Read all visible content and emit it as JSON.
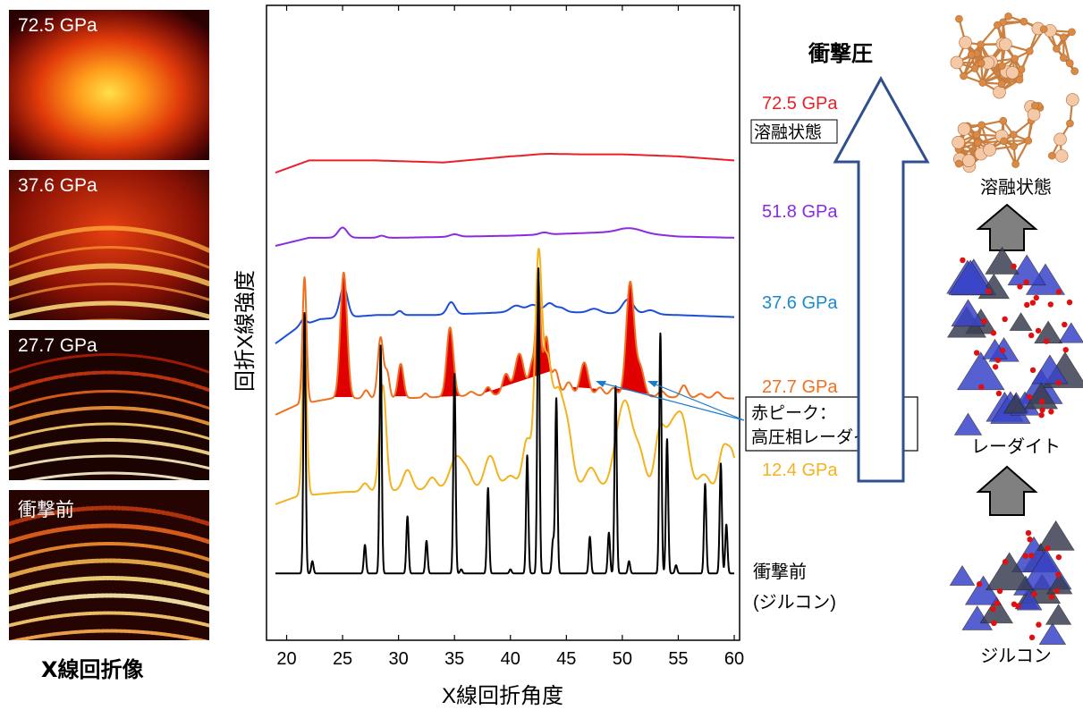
{
  "xray_images": {
    "panels": [
      {
        "label": "72.5 GPa",
        "style": "melt"
      },
      {
        "label": "37.6 GPa",
        "style": "rings-mid"
      },
      {
        "label": "27.7 GPa",
        "style": "rings-spotty"
      },
      {
        "label": "衝撃前",
        "style": "rings-grainy"
      }
    ],
    "caption": "X線回折像"
  },
  "chart_data": {
    "type": "line",
    "xlabel": "X線回折角度",
    "ylabel": "回折X線強度",
    "xlim": [
      19,
      60
    ],
    "xticks": [
      20,
      25,
      30,
      35,
      40,
      45,
      50,
      55,
      60
    ],
    "grid": false,
    "series": [
      {
        "name": "72.5 GPa",
        "color": "#e8202a",
        "offset": 10.1,
        "peaks": [
          [
            43,
            0.03,
            1.2
          ]
        ],
        "points": [
          [
            19,
            -0.25
          ],
          [
            22,
            0.05
          ],
          [
            28,
            0.05
          ],
          [
            34,
            0.0
          ],
          [
            40,
            0.15
          ],
          [
            45,
            0.2
          ],
          [
            50,
            0.2
          ],
          [
            55,
            0.15
          ],
          [
            60,
            0.05
          ]
        ]
      },
      {
        "name": "51.8 GPa",
        "color": "#8a2be2",
        "offset": 8.25,
        "peaks": [
          [
            25,
            0.25,
            0.4
          ],
          [
            28.5,
            0.05,
            0.3
          ],
          [
            35,
            0.06,
            0.4
          ],
          [
            43,
            0.05,
            0.4
          ],
          [
            50.8,
            0.1,
            1.0
          ]
        ],
        "points": [
          [
            19,
            -0.2
          ],
          [
            22,
            0.0
          ],
          [
            30,
            0.0
          ],
          [
            40,
            0.05
          ],
          [
            50,
            0.15
          ],
          [
            55,
            0.03
          ],
          [
            60,
            0.0
          ]
        ]
      },
      {
        "name": "37.6 GPa",
        "color": "#1a4fd6",
        "offset": 6.35,
        "peaks": [
          [
            21.5,
            0.15,
            0.25
          ],
          [
            25.1,
            0.75,
            0.35
          ],
          [
            30.1,
            0.1,
            0.25
          ],
          [
            34.7,
            0.3,
            0.35
          ],
          [
            40.5,
            0.15,
            0.5
          ],
          [
            42.0,
            0.15,
            0.5
          ],
          [
            43.5,
            0.2,
            0.4
          ],
          [
            44.5,
            0.1,
            0.4
          ],
          [
            47.5,
            0.1,
            0.5
          ],
          [
            50.5,
            0.35,
            0.5
          ],
          [
            52.5,
            0.1,
            0.5
          ]
        ],
        "points": [
          [
            19,
            -0.7
          ],
          [
            21,
            -0.3
          ],
          [
            23,
            -0.1
          ],
          [
            28,
            0.0
          ],
          [
            33,
            0.0
          ],
          [
            38,
            0.05
          ],
          [
            42,
            0.1
          ],
          [
            48,
            0.05
          ],
          [
            55,
            0.0
          ],
          [
            60,
            -0.05
          ]
        ]
      },
      {
        "name": "27.7 GPa",
        "color": "#f07020",
        "offset": 4.3,
        "peaks": [
          [
            21.6,
            3.1,
            0.18
          ],
          [
            25.1,
            3.1,
            0.3
          ],
          [
            27.1,
            0.2,
            0.25
          ],
          [
            28.4,
            1.5,
            0.25
          ],
          [
            29.0,
            0.6,
            0.2
          ],
          [
            30.2,
            0.85,
            0.25
          ],
          [
            32.4,
            0.1,
            0.2
          ],
          [
            34.6,
            1.7,
            0.3
          ],
          [
            36.5,
            0.1,
            0.3
          ],
          [
            38.0,
            0.2,
            0.25
          ],
          [
            39.6,
            0.5,
            0.3
          ],
          [
            40.8,
            1.0,
            0.4
          ],
          [
            42.0,
            0.8,
            0.3
          ],
          [
            42.5,
            2.6,
            0.2
          ],
          [
            43.2,
            1.4,
            0.25
          ],
          [
            44.0,
            0.6,
            0.3
          ],
          [
            45.2,
            0.3,
            0.3
          ],
          [
            46.6,
            0.8,
            0.35
          ],
          [
            48.0,
            0.2,
            0.3
          ],
          [
            49.2,
            0.2,
            0.3
          ],
          [
            50.7,
            2.8,
            0.35
          ],
          [
            51.6,
            0.7,
            0.35
          ],
          [
            53.5,
            0.15,
            0.3
          ],
          [
            55.5,
            0.3,
            0.3
          ],
          [
            57.0,
            0.1,
            0.3
          ],
          [
            58.5,
            0.15,
            0.3
          ]
        ],
        "points": [
          [
            19,
            -0.4
          ],
          [
            21,
            -0.15
          ],
          [
            24,
            0.0
          ],
          [
            30,
            0.0
          ],
          [
            40,
            0.1
          ],
          [
            45,
            0.1
          ],
          [
            50,
            0.05
          ],
          [
            60,
            0.0
          ]
        ]
      },
      {
        "name": "12.4 GPa",
        "color": "#f4b21e",
        "offset": 2.0,
        "peaks": [
          [
            21.6,
            3.8,
            0.2
          ],
          [
            27.0,
            0.2,
            0.3
          ],
          [
            28.6,
            2.6,
            0.3
          ],
          [
            30.8,
            0.5,
            0.4
          ],
          [
            33.0,
            0.3,
            0.4
          ],
          [
            35.2,
            0.8,
            0.6
          ],
          [
            36.2,
            0.3,
            0.4
          ],
          [
            38.2,
            0.8,
            0.5
          ],
          [
            40.0,
            0.3,
            0.5
          ],
          [
            41.5,
            1.2,
            0.4
          ],
          [
            42.5,
            5.4,
            0.3
          ],
          [
            43.3,
            3.0,
            0.4
          ],
          [
            44.2,
            1.8,
            0.4
          ],
          [
            45.0,
            1.6,
            0.5
          ],
          [
            47.2,
            0.5,
            0.5
          ],
          [
            49.8,
            1.4,
            0.6
          ],
          [
            50.5,
            1.2,
            0.5
          ],
          [
            51.5,
            0.9,
            0.5
          ],
          [
            53.3,
            1.0,
            0.4
          ],
          [
            54.5,
            1.6,
            0.8
          ],
          [
            55.5,
            1.0,
            0.5
          ],
          [
            57.3,
            0.4,
            0.5
          ],
          [
            59.0,
            1.0,
            0.4
          ],
          [
            59.8,
            0.9,
            0.4
          ]
        ],
        "points": [
          [
            19,
            -0.3
          ],
          [
            21,
            -0.1
          ],
          [
            25,
            0.0
          ],
          [
            32,
            0.05
          ],
          [
            40,
            0.1
          ],
          [
            45,
            0.1
          ],
          [
            50,
            0.1
          ],
          [
            55,
            0.05
          ],
          [
            60,
            0.0
          ]
        ]
      },
      {
        "name": "衝撃前 (ジルコン)",
        "color": "#000000",
        "offset": 0.0,
        "peaks": [
          [
            21.6,
            6.4,
            0.1
          ],
          [
            22.3,
            0.3,
            0.1
          ],
          [
            27.0,
            0.7,
            0.1
          ],
          [
            28.4,
            5.6,
            0.1
          ],
          [
            30.8,
            1.4,
            0.1
          ],
          [
            32.5,
            0.8,
            0.1
          ],
          [
            35.0,
            4.9,
            0.1
          ],
          [
            35.6,
            0.1,
            0.1
          ],
          [
            38.0,
            2.1,
            0.1
          ],
          [
            40.0,
            0.1,
            0.1
          ],
          [
            41.5,
            2.9,
            0.1
          ],
          [
            42.5,
            7.5,
            0.1
          ],
          [
            43.8,
            0.8,
            0.1
          ],
          [
            44.1,
            4.3,
            0.1
          ],
          [
            47.1,
            0.9,
            0.1
          ],
          [
            48.8,
            1.0,
            0.1
          ],
          [
            49.4,
            4.6,
            0.1
          ],
          [
            50.6,
            0.3,
            0.1
          ],
          [
            53.4,
            5.9,
            0.1
          ],
          [
            54.0,
            3.3,
            0.1
          ],
          [
            54.8,
            0.2,
            0.1
          ],
          [
            57.4,
            2.2,
            0.1
          ],
          [
            58.8,
            2.7,
            0.1
          ],
          [
            59.3,
            1.2,
            0.1
          ]
        ],
        "points": [
          [
            19,
            0.0
          ],
          [
            60,
            0.0
          ]
        ]
      }
    ],
    "ylim": [
      -0.5,
      13.5
    ]
  },
  "annotation": {
    "callout_line1": "赤ピーク：",
    "callout_line2": "高圧相レーダイト",
    "melt_label": "溶融状態"
  },
  "series_labels": {
    "p725": "72.5 GPa",
    "p518": "51.8 GPa",
    "p376": "37.6 GPa",
    "p277": "27.7 GPa",
    "p124": "12.4 GPa",
    "pre_line1": "衝撃前",
    "pre_line2": "(ジルコン)"
  },
  "pressure_arrow": {
    "title": "衝撃圧"
  },
  "structures": {
    "melt": "溶融状態",
    "reidite": "レーダイト",
    "zircon": "ジルコン"
  },
  "colors": {
    "red": "#e8202a",
    "purple": "#8a2be2",
    "blue": "#1a4fd6",
    "orange": "#f07020",
    "yellow": "#f4b21e",
    "arrow": "#2f4f8f"
  }
}
